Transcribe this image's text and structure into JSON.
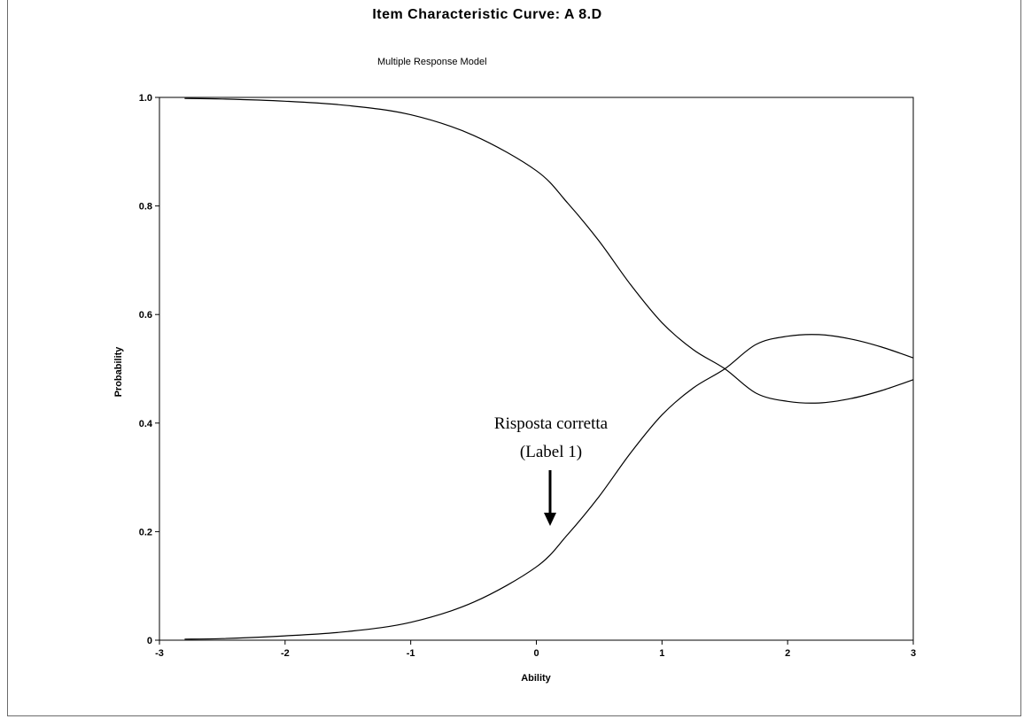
{
  "chart_data": {
    "type": "line",
    "title": "Item Characteristic Curve: A 8.D",
    "subtitle": "Multiple Response Model",
    "xlabel": "Ability",
    "ylabel": "Probability",
    "xlim": [
      -3,
      3
    ],
    "ylim": [
      0,
      1
    ],
    "x_ticks": [
      "-3",
      "-2",
      "-1",
      "0",
      "1",
      "2",
      "3"
    ],
    "y_ticks": [
      "0",
      "0.2",
      "0.4",
      "0.6",
      "0.8",
      "1.0"
    ],
    "grid": false,
    "series": [
      {
        "x": [
          -2.8,
          -2.5,
          -2.0,
          -1.5,
          -1.0,
          -0.5,
          0.0,
          0.25,
          0.5,
          0.75,
          1.0,
          1.25,
          1.5,
          1.75,
          2.0,
          2.25,
          2.5,
          2.75,
          3.0
        ],
        "values": [
          0.998,
          0.997,
          0.993,
          0.985,
          0.968,
          0.93,
          0.865,
          0.805,
          0.735,
          0.655,
          0.585,
          0.535,
          0.5,
          0.455,
          0.44,
          0.437,
          0.445,
          0.46,
          0.48
        ]
      },
      {
        "x": [
          -2.8,
          -2.5,
          -2.0,
          -1.5,
          -1.0,
          -0.5,
          0.0,
          0.25,
          0.5,
          0.75,
          1.0,
          1.25,
          1.5,
          1.75,
          2.0,
          2.25,
          2.5,
          2.75,
          3.0
        ],
        "values": [
          0.002,
          0.003,
          0.008,
          0.016,
          0.033,
          0.07,
          0.135,
          0.195,
          0.265,
          0.345,
          0.415,
          0.465,
          0.5,
          0.545,
          0.56,
          0.563,
          0.555,
          0.54,
          0.52
        ]
      }
    ],
    "annotations": [
      {
        "text_line1": "Risposta corretta",
        "text_line2": "(Label 1)",
        "arrow_to": {
          "x": 0.1,
          "y": 0.21
        }
      }
    ]
  }
}
